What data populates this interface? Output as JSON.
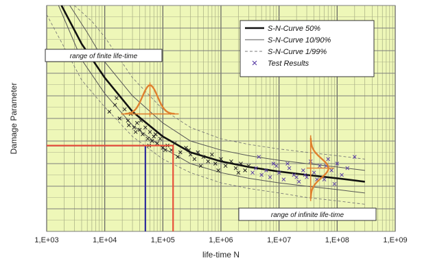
{
  "chart_data": {
    "type": "line",
    "title": "",
    "xlabel": "life-time N",
    "ylabel": "Damage Parameter",
    "xscale": "log",
    "xlim": [
      1000,
      1000000000
    ],
    "ylim": [
      0,
      10
    ],
    "x_tick_labels": [
      "1,E+03",
      "1,E+04",
      "1,E+05",
      "1,E+06",
      "1,E+07",
      "1,E+08",
      "1,E+09"
    ],
    "grid": true,
    "legend_position": "top-right",
    "background_color": "#eef7b8",
    "series": [
      {
        "name": "S-N-Curve 50%",
        "color": "#111111",
        "x": [
          1800,
          4000,
          10000,
          30000,
          100000,
          300000,
          1000000,
          3000000,
          10000000,
          30000000,
          100000000,
          300000000
        ],
        "y": [
          10.0,
          8.3,
          6.8,
          5.3,
          4.2,
          3.5,
          3.1,
          2.85,
          2.65,
          2.5,
          2.35,
          2.2
        ]
      },
      {
        "name": "S-N-Curve 10/90%",
        "color": "#555555",
        "x": [
          1600,
          4000,
          10000,
          30000,
          100000,
          300000,
          1000000,
          3000000,
          10000000,
          30000000,
          100000000,
          300000000
        ],
        "y": [
          10.0,
          7.6,
          6.1,
          4.7,
          3.7,
          3.0,
          2.6,
          2.35,
          2.15,
          2.0,
          1.85,
          1.7
        ]
      },
      {
        "name": "",
        "color": "#555555",
        "x": [
          2500,
          5000,
          10000,
          30000,
          100000,
          300000,
          1000000,
          3000000,
          10000000,
          30000000,
          100000000,
          300000000
        ],
        "y": [
          10.0,
          8.8,
          7.5,
          6.0,
          4.8,
          4.0,
          3.6,
          3.35,
          3.15,
          3.0,
          2.85,
          2.7
        ]
      },
      {
        "name": "S-N-Curve 1/99%",
        "color": "#777777",
        "x": [
          1000,
          4000,
          10000,
          30000,
          100000,
          300000,
          1000000,
          3000000,
          10000000,
          30000000,
          100000000,
          300000000
        ],
        "y": [
          9.6,
          6.7,
          5.5,
          4.2,
          3.2,
          2.6,
          2.15,
          1.9,
          1.7,
          1.5,
          1.35,
          1.2
        ]
      },
      {
        "name": "",
        "color": "#777777",
        "x": [
          3000,
          6000,
          10000,
          30000,
          100000,
          300000,
          1000000,
          3000000,
          10000000,
          30000000,
          100000000,
          300000000
        ],
        "y": [
          10.0,
          9.3,
          8.6,
          6.8,
          5.4,
          4.6,
          4.1,
          3.85,
          3.65,
          3.5,
          3.35,
          3.2
        ]
      }
    ],
    "test_results": {
      "name": "Test Results",
      "color": "#5a3ea6",
      "x": [
        12000,
        15000,
        18000,
        22000,
        25000,
        28000,
        32000,
        36000,
        40000,
        45000,
        50000,
        55000,
        60000,
        65000,
        70000,
        80000,
        90000,
        100000,
        120000,
        140000,
        160000,
        200000,
        250000,
        300000,
        350000,
        400000,
        500000,
        600000,
        700000,
        800000,
        1000000,
        1200000,
        1500000,
        1800000,
        2200000,
        2600000,
        3000000,
        3500000,
        4000000,
        5000000,
        6000000,
        7000000,
        8000000,
        10000000,
        12000000,
        15000000,
        18000000,
        22000000,
        26000000,
        30000000,
        35000000,
        40000000,
        50000000,
        60000000,
        70000000,
        80000000,
        100000000,
        120000000,
        150000000,
        200000000,
        16000,
        26000,
        34000,
        42000,
        58000,
        75000,
        110000,
        180000,
        280000,
        450000,
        900000,
        2000000,
        4500000,
        9000000,
        14000000,
        20000000,
        28000000,
        45000000,
        65000000,
        90000000
      ],
      "y": [
        5.3,
        5.6,
        5.0,
        5.4,
        4.9,
        5.2,
        4.6,
        4.8,
        4.5,
        4.3,
        4.6,
        4.1,
        4.4,
        4.0,
        4.2,
        3.9,
        4.1,
        3.7,
        3.8,
        3.6,
        3.9,
        3.5,
        3.7,
        3.4,
        3.2,
        3.5,
        3.3,
        3.1,
        3.4,
        3.0,
        3.2,
        2.9,
        3.1,
        2.8,
        3.0,
        2.7,
        2.9,
        2.6,
        2.8,
        2.5,
        2.7,
        2.4,
        3.0,
        2.6,
        2.3,
        2.8,
        2.5,
        2.2,
        2.7,
        2.4,
        3.1,
        2.6,
        2.9,
        2.3,
        3.2,
        2.7,
        3.0,
        2.5,
        2.8,
        3.3,
        5.9,
        4.7,
        4.4,
        4.9,
        3.8,
        4.3,
        3.6,
        3.3,
        3.6,
        2.9,
        2.7,
        2.6,
        3.3,
        2.9,
        3.0,
        2.4,
        2.5,
        2.3,
        2.9,
        2.1
      ],
      "marker": "x"
    },
    "annotations": [
      {
        "text": "range of finite life-time",
        "anchor": "top-left"
      },
      {
        "text": "range of infinite life-time",
        "anchor": "bottom-right"
      }
    ],
    "reference_lines": [
      {
        "color": "#2c2a9c",
        "x": 50000,
        "y": 3.8
      },
      {
        "color": "#e8503a",
        "x": 150000,
        "y": 3.8
      }
    ],
    "distributions": [
      {
        "color": "#e0802e",
        "x": 60000,
        "y": 5.2
      },
      {
        "color": "#e0802e",
        "x": 35000000,
        "y": 2.8
      }
    ]
  }
}
